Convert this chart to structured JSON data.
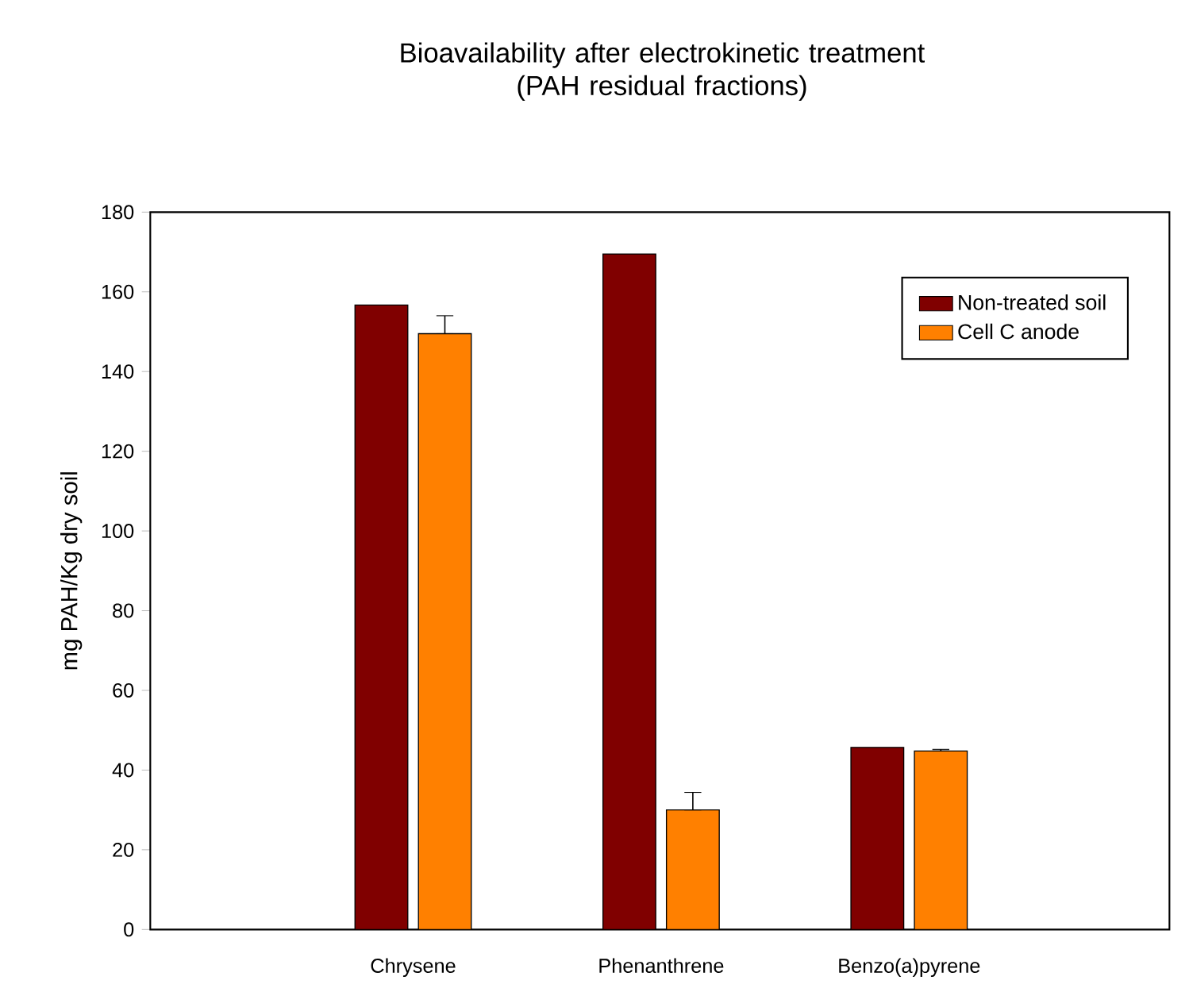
{
  "chart_data": {
    "type": "bar",
    "title": "Bioavailability after electrokinetic treatment\n(PAH residual fractions)",
    "ylabel": "mg PAH/Kg dry soil",
    "categories": [
      "Chrysene",
      "Phenanthrene",
      "Benzo(a)pyrene"
    ],
    "series": [
      {
        "name": "Non-treated soil",
        "color": "#800000",
        "values": [
          156.7,
          169.5,
          45.7
        ]
      },
      {
        "name": "Cell C anode",
        "color": "#ff8000",
        "values": [
          149.5,
          30,
          44.8
        ],
        "errors": [
          [
            149.5,
            154
          ],
          [
            30,
            34.4
          ],
          [
            44.8,
            45.2
          ]
        ]
      }
    ],
    "ylim": [
      0,
      180
    ],
    "yticks": [
      0,
      20,
      40,
      60,
      80,
      100,
      120,
      140,
      160,
      180
    ],
    "legend": "top right",
    "grid": false
  }
}
